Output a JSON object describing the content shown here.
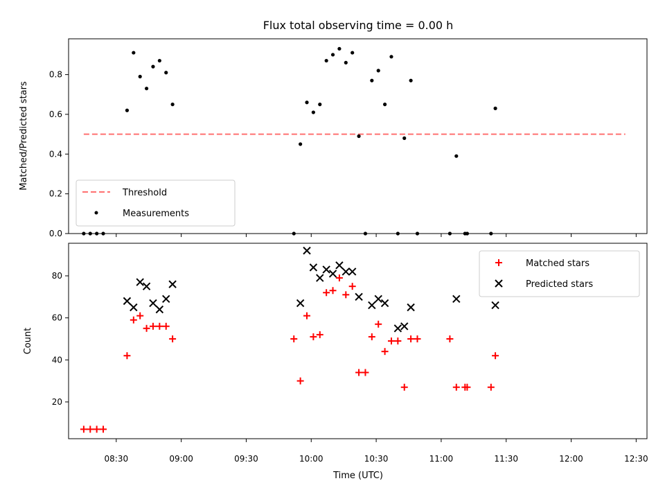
{
  "chart_data": [
    {
      "type": "scatter",
      "title": "Flux total observing time = 0.00 h",
      "ylabel": "Matched/Predicted stars",
      "ylim": [
        0,
        0.98
      ],
      "yticks": [
        "0.0",
        "0.2",
        "0.4",
        "0.6",
        "0.8"
      ],
      "xlim": [
        "08:08",
        "12:35"
      ],
      "grid": false,
      "legend_position": "lower-left",
      "threshold": {
        "name": "Threshold",
        "value": 0.5,
        "x_start": "08:15",
        "x_end": "12:25",
        "color": "#ff7070"
      },
      "series": [
        {
          "name": "Measurements",
          "color": "#000000",
          "points": [
            [
              "08:15",
              0.0
            ],
            [
              "08:18",
              0.0
            ],
            [
              "08:21",
              0.0
            ],
            [
              "08:24",
              0.0
            ],
            [
              "08:35",
              0.62
            ],
            [
              "08:38",
              0.91
            ],
            [
              "08:41",
              0.79
            ],
            [
              "08:44",
              0.73
            ],
            [
              "08:47",
              0.84
            ],
            [
              "08:50",
              0.87
            ],
            [
              "08:53",
              0.81
            ],
            [
              "08:56",
              0.65
            ],
            [
              "09:52",
              0.0
            ],
            [
              "09:55",
              0.45
            ],
            [
              "09:58",
              0.66
            ],
            [
              "10:01",
              0.61
            ],
            [
              "10:04",
              0.65
            ],
            [
              "10:07",
              0.87
            ],
            [
              "10:10",
              0.9
            ],
            [
              "10:13",
              0.93
            ],
            [
              "10:16",
              0.86
            ],
            [
              "10:19",
              0.91
            ],
            [
              "10:22",
              0.49
            ],
            [
              "10:25",
              0.0
            ],
            [
              "10:28",
              0.77
            ],
            [
              "10:31",
              0.82
            ],
            [
              "10:34",
              0.65
            ],
            [
              "10:37",
              0.89
            ],
            [
              "10:40",
              0.0
            ],
            [
              "10:43",
              0.48
            ],
            [
              "10:46",
              0.77
            ],
            [
              "10:49",
              0.0
            ],
            [
              "11:04",
              0.0
            ],
            [
              "11:07",
              0.39
            ],
            [
              "11:11",
              0.0
            ],
            [
              "11:12",
              0.0
            ],
            [
              "11:23",
              0.0
            ],
            [
              "11:25",
              0.63
            ]
          ]
        }
      ]
    },
    {
      "type": "scatter",
      "xlabel": "Time (UTC)",
      "ylabel": "Count",
      "ylim": [
        2.5,
        95.5
      ],
      "yticks": [
        "20",
        "40",
        "60",
        "80"
      ],
      "xlim": [
        "08:08",
        "12:35"
      ],
      "xticks": [
        "08:30",
        "09:00",
        "09:30",
        "10:00",
        "10:30",
        "11:00",
        "11:30",
        "12:00",
        "12:30"
      ],
      "grid": false,
      "legend_position": "upper-right",
      "series": [
        {
          "name": "Matched stars",
          "color": "#ff0000",
          "marker": "plus",
          "points": [
            [
              "08:15",
              7
            ],
            [
              "08:18",
              7
            ],
            [
              "08:21",
              7
            ],
            [
              "08:24",
              7
            ],
            [
              "08:35",
              42
            ],
            [
              "08:38",
              59
            ],
            [
              "08:41",
              61
            ],
            [
              "08:44",
              55
            ],
            [
              "08:47",
              56
            ],
            [
              "08:50",
              56
            ],
            [
              "08:53",
              56
            ],
            [
              "08:56",
              50
            ],
            [
              "09:52",
              50
            ],
            [
              "09:55",
              30
            ],
            [
              "09:58",
              61
            ],
            [
              "10:01",
              51
            ],
            [
              "10:04",
              52
            ],
            [
              "10:07",
              72
            ],
            [
              "10:10",
              73
            ],
            [
              "10:13",
              79
            ],
            [
              "10:16",
              71
            ],
            [
              "10:19",
              75
            ],
            [
              "10:22",
              34
            ],
            [
              "10:25",
              34
            ],
            [
              "10:28",
              51
            ],
            [
              "10:31",
              57
            ],
            [
              "10:34",
              44
            ],
            [
              "10:37",
              49
            ],
            [
              "10:40",
              49
            ],
            [
              "10:43",
              27
            ],
            [
              "10:46",
              50
            ],
            [
              "10:49",
              50
            ],
            [
              "11:04",
              50
            ],
            [
              "11:07",
              27
            ],
            [
              "11:11",
              27
            ],
            [
              "11:12",
              27
            ],
            [
              "11:23",
              27
            ],
            [
              "11:25",
              42
            ]
          ]
        },
        {
          "name": "Predicted stars",
          "color": "#000000",
          "marker": "x",
          "points": [
            [
              "08:35",
              68
            ],
            [
              "08:38",
              65
            ],
            [
              "08:41",
              77
            ],
            [
              "08:44",
              75
            ],
            [
              "08:47",
              67
            ],
            [
              "08:50",
              64
            ],
            [
              "08:53",
              69
            ],
            [
              "08:56",
              76
            ],
            [
              "09:55",
              67
            ],
            [
              "09:58",
              92
            ],
            [
              "10:01",
              84
            ],
            [
              "10:04",
              79
            ],
            [
              "10:07",
              83
            ],
            [
              "10:10",
              81
            ],
            [
              "10:13",
              85
            ],
            [
              "10:16",
              82
            ],
            [
              "10:19",
              82
            ],
            [
              "10:22",
              70
            ],
            [
              "10:28",
              66
            ],
            [
              "10:31",
              69
            ],
            [
              "10:34",
              67
            ],
            [
              "10:40",
              55
            ],
            [
              "10:43",
              56
            ],
            [
              "10:46",
              65
            ],
            [
              "11:07",
              69
            ],
            [
              "11:25",
              66
            ]
          ]
        }
      ]
    }
  ]
}
